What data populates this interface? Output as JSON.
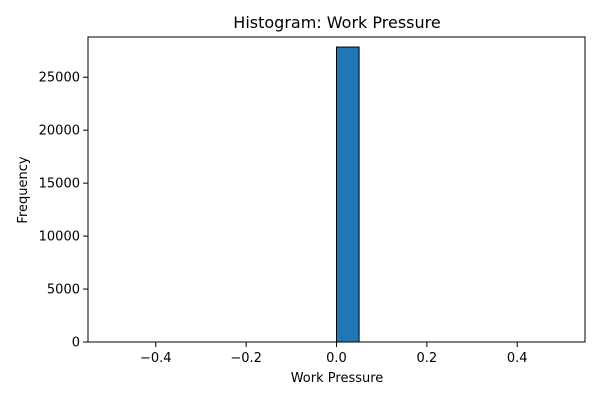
{
  "chart_data": {
    "type": "bar",
    "title": "Histogram: Work Pressure",
    "xlabel": "Work Pressure",
    "ylabel": "Frequency",
    "xlim": [
      -0.55,
      0.55
    ],
    "ylim": [
      0,
      28800
    ],
    "x_ticks": [
      -0.4,
      -0.2,
      0.0,
      0.2,
      0.4
    ],
    "x_tick_labels": [
      "−0.4",
      "−0.2",
      "0.0",
      "0.2",
      "0.4"
    ],
    "y_ticks": [
      0,
      5000,
      10000,
      15000,
      20000,
      25000
    ],
    "y_tick_labels": [
      "0",
      "5000",
      "10000",
      "15000",
      "20000",
      "25000"
    ],
    "bins": [
      {
        "x0": -0.5,
        "x1": -0.45,
        "count": 0
      },
      {
        "x0": -0.45,
        "x1": -0.4,
        "count": 0
      },
      {
        "x0": -0.4,
        "x1": -0.35,
        "count": 0
      },
      {
        "x0": -0.35,
        "x1": -0.3,
        "count": 0
      },
      {
        "x0": -0.3,
        "x1": -0.25,
        "count": 0
      },
      {
        "x0": -0.25,
        "x1": -0.2,
        "count": 0
      },
      {
        "x0": -0.2,
        "x1": -0.15,
        "count": 0
      },
      {
        "x0": -0.15,
        "x1": -0.1,
        "count": 0
      },
      {
        "x0": -0.1,
        "x1": -0.05,
        "count": 0
      },
      {
        "x0": -0.05,
        "x1": 0.0,
        "count": 0
      },
      {
        "x0": 0.0,
        "x1": 0.05,
        "count": 27850
      },
      {
        "x0": 0.05,
        "x1": 0.1,
        "count": 0
      },
      {
        "x0": 0.1,
        "x1": 0.15,
        "count": 0
      },
      {
        "x0": 0.15,
        "x1": 0.2,
        "count": 0
      },
      {
        "x0": 0.2,
        "x1": 0.25,
        "count": 0
      },
      {
        "x0": 0.25,
        "x1": 0.3,
        "count": 0
      },
      {
        "x0": 0.3,
        "x1": 0.35,
        "count": 0
      },
      {
        "x0": 0.35,
        "x1": 0.4,
        "count": 0
      },
      {
        "x0": 0.4,
        "x1": 0.45,
        "count": 0
      },
      {
        "x0": 0.45,
        "x1": 0.5,
        "count": 0
      }
    ],
    "grid": false,
    "bar_color": "#1f77b4",
    "edge_color": "#000000"
  }
}
